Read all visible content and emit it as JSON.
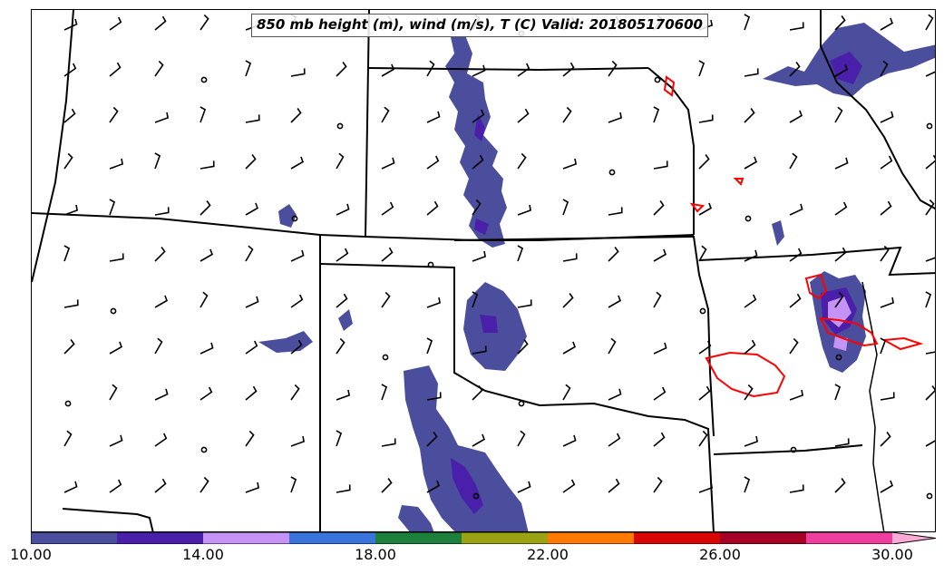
{
  "title": "850 mb height (m), wind (m/s), T (C) Valid: 201805170600",
  "colorbar": {
    "colors": [
      "#4b4e9c",
      "#4a1faa",
      "#c592f5",
      "#3a74dc",
      "#1e7f3d",
      "#9ba214",
      "#fe7a00",
      "#d90606",
      "#a70026",
      "#ef3f9e",
      "#fdaad6"
    ],
    "tick_labels": [
      "10.00",
      "14.00",
      "18.00",
      "22.00",
      "26.00",
      "30.00"
    ]
  },
  "map": {
    "variables": [
      "850 mb height (m)",
      "wind (m/s)",
      "T (C)"
    ],
    "shaded_field": "T (C)",
    "height_contour_color": "#ff0000",
    "barb_color": "#000000",
    "border_color": "#000000"
  }
}
